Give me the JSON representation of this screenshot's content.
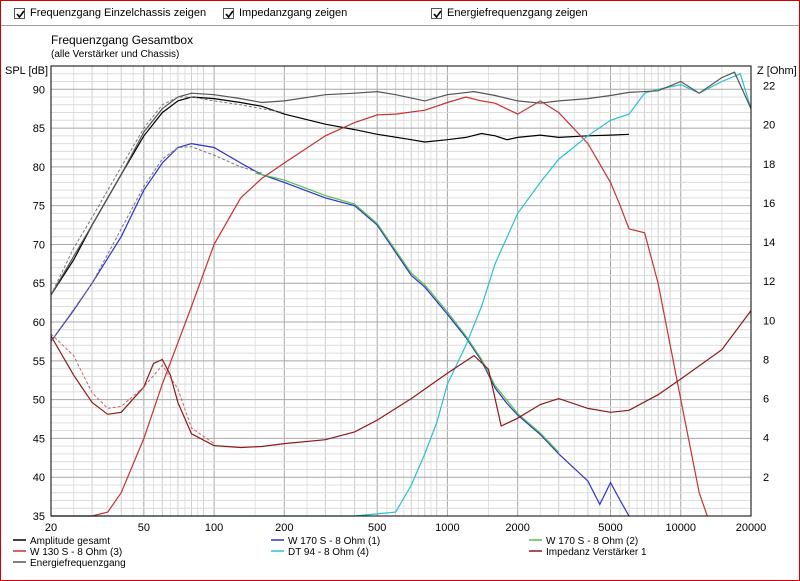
{
  "options": [
    {
      "label": "Frequenzgang Einzelchassis zeigen",
      "checked": true
    },
    {
      "label": "Impedanzgang zeigen",
      "checked": true
    },
    {
      "label": "Energiefrequenzgang zeigen",
      "checked": true
    }
  ],
  "chart_data": {
    "type": "line",
    "title": "Frequenzgang Gesamtbox",
    "subtitle": "(alle Verstärker und Chassis)",
    "ylabel": "SPL [dB]",
    "y2label": "Z [Ohm]",
    "xscale": "log",
    "xlim": [
      20,
      20000
    ],
    "ylim": [
      35,
      93
    ],
    "y2lim": [
      0,
      23
    ],
    "grid": true,
    "x_ticks": [
      "20",
      "50",
      "100",
      "200",
      "500",
      "1000",
      "2000",
      "5000",
      "10000",
      "20000"
    ],
    "x_tick_values": [
      20,
      50,
      100,
      200,
      500,
      1000,
      2000,
      5000,
      10000,
      20000
    ],
    "y_ticks": [
      "35",
      "40",
      "45",
      "50",
      "55",
      "60",
      "65",
      "70",
      "75",
      "80",
      "85",
      "90"
    ],
    "y_tick_values": [
      35,
      40,
      45,
      50,
      55,
      60,
      65,
      70,
      75,
      80,
      85,
      90
    ],
    "y2_ticks": [
      "2",
      "4",
      "6",
      "8",
      "10",
      "12",
      "14",
      "16",
      "18",
      "20",
      "22"
    ],
    "y2_tick_values": [
      2,
      4,
      6,
      8,
      10,
      12,
      14,
      16,
      18,
      20,
      22
    ],
    "series": [
      {
        "name": "Amplitude gesamt",
        "axis": "spl",
        "color": "#000000",
        "style": "solid",
        "x": [
          20,
          25,
          30,
          40,
          50,
          60,
          70,
          80,
          100,
          130,
          160,
          200,
          300,
          400,
          500,
          700,
          800,
          1000,
          1200,
          1400,
          1600,
          1800,
          2000,
          2500,
          3000,
          4000,
          5000,
          6000
        ],
        "y": [
          63.5,
          68,
          72.5,
          79,
          84,
          87,
          88.5,
          89,
          88.8,
          88.3,
          87.8,
          86.8,
          85.5,
          84.8,
          84.2,
          83.5,
          83.2,
          83.5,
          83.8,
          84.3,
          84,
          83.5,
          83.8,
          84.1,
          83.8,
          84,
          84.1,
          84.2
        ]
      },
      {
        "name": "W 170 S - 8 Ohm (1)",
        "axis": "spl",
        "color": "#3030c8",
        "style": "solid",
        "x": [
          20,
          25,
          30,
          40,
          50,
          60,
          70,
          80,
          100,
          130,
          160,
          200,
          300,
          400,
          500,
          700,
          800,
          1000,
          1200,
          1400,
          1600,
          1800,
          2000,
          2500,
          3000,
          4000,
          4500,
          5000,
          5500,
          6000
        ],
        "y": [
          57.5,
          61.5,
          65,
          71,
          77,
          80.5,
          82.5,
          83,
          82.5,
          80.5,
          79,
          78,
          76,
          75,
          72.5,
          66,
          64.5,
          61,
          58,
          55,
          51.5,
          49.5,
          48,
          45.5,
          43,
          39.5,
          36.5,
          39.3,
          37,
          35
        ]
      },
      {
        "name": "W 170 S - 8 Ohm (2)",
        "axis": "spl",
        "color": "#4cc44c",
        "style": "solid",
        "x": [
          150,
          200,
          300,
          400,
          500,
          700,
          800,
          1000,
          1200,
          1400,
          1600,
          2000,
          2500,
          3000
        ],
        "y": [
          79.2,
          78.3,
          76.3,
          75.2,
          72.7,
          66.3,
          64.8,
          61.3,
          58.2,
          55.2,
          51.8,
          48.2,
          45.7,
          43.2
        ]
      },
      {
        "name": "W 130 S - 8 Ohm (3)",
        "axis": "spl",
        "color": "#c83232",
        "style": "solid",
        "x": [
          20,
          30,
          35,
          40,
          50,
          60,
          80,
          100,
          130,
          160,
          200,
          300,
          400,
          500,
          600,
          800,
          1000,
          1200,
          1400,
          1600,
          2000,
          2500,
          3000,
          4000,
          5000,
          5500,
          6000,
          7000,
          8000,
          10000,
          12000,
          13000
        ],
        "y": [
          35,
          35,
          35.5,
          38,
          45,
          52,
          62,
          70,
          76,
          78.5,
          80.5,
          84,
          85.7,
          86.7,
          86.8,
          87.3,
          88.3,
          89,
          88.5,
          88.2,
          86.8,
          88.5,
          87,
          83,
          78,
          75,
          72,
          71.5,
          65,
          50,
          38,
          35
        ]
      },
      {
        "name": "DT 94 - 8 Ohm (4)",
        "axis": "spl",
        "color": "#2ac0d0",
        "style": "solid",
        "x": [
          20,
          400,
          600,
          700,
          800,
          900,
          1000,
          1200,
          1400,
          1600,
          2000,
          2500,
          3000,
          4000,
          5000,
          6000,
          7000,
          8000,
          10000,
          12000,
          15000,
          18000,
          20000
        ],
        "y": [
          35,
          35,
          35.5,
          39,
          43,
          47,
          52,
          57,
          62,
          67.5,
          74,
          78,
          81,
          84,
          86,
          86.8,
          89.5,
          90,
          90.6,
          89.5,
          91,
          92,
          87.5
        ]
      },
      {
        "name": "Impedanz Verstärker 1",
        "axis": "impedance",
        "color": "#8b1a1a",
        "style": "solid",
        "x": [
          20,
          25,
          30,
          35,
          40,
          50,
          55,
          60,
          65,
          70,
          80,
          100,
          130,
          160,
          200,
          300,
          400,
          500,
          700,
          1000,
          1300,
          1500,
          1700,
          2000,
          2500,
          3000,
          4000,
          5000,
          6000,
          8000,
          10000,
          15000,
          20000
        ],
        "y": [
          9.2,
          7.2,
          5.8,
          5.2,
          5.3,
          6.6,
          7.8,
          8.0,
          7.2,
          5.8,
          4.2,
          3.6,
          3.5,
          3.55,
          3.7,
          3.9,
          4.3,
          4.9,
          6.0,
          7.3,
          8.2,
          7.5,
          4.6,
          5.0,
          5.7,
          6.0,
          5.5,
          5.3,
          5.4,
          6.2,
          7.0,
          8.5,
          10.5
        ]
      },
      {
        "name": "Energiefrequenzgang",
        "axis": "spl",
        "color": "#555555",
        "style": "solid",
        "x": [
          20,
          30,
          40,
          50,
          60,
          70,
          80,
          100,
          130,
          160,
          200,
          300,
          400,
          500,
          600,
          800,
          1000,
          1300,
          1600,
          2000,
          2500,
          3000,
          4000,
          5000,
          6000,
          8000,
          10000,
          12000,
          15000,
          17000,
          20000
        ],
        "y": [
          63.5,
          72.5,
          79,
          84.5,
          87.5,
          89,
          89.5,
          89.3,
          88.8,
          88.3,
          88.5,
          89.3,
          89.5,
          89.7,
          89.3,
          88.5,
          89.3,
          89.7,
          89.2,
          88.5,
          88.2,
          88.5,
          88.8,
          89.2,
          89.6,
          89.8,
          91,
          89.5,
          91.5,
          92.2,
          87.5
        ]
      },
      {
        "name": "",
        "axis": "spl",
        "color": "#777777",
        "style": "dashed",
        "x": [
          20,
          25,
          30,
          40,
          50,
          60,
          70,
          80,
          100,
          130,
          160,
          200
        ],
        "y": [
          63.5,
          69.5,
          73.5,
          80,
          85,
          88,
          89,
          89,
          88.5,
          88,
          87.5,
          87
        ]
      },
      {
        "name": "",
        "axis": "spl",
        "color": "#777777",
        "style": "dashed",
        "x": [
          20,
          30,
          40,
          50,
          60,
          70,
          80,
          100,
          130,
          160
        ],
        "y": [
          57.5,
          65,
          72,
          77.5,
          81,
          82.5,
          82.6,
          81.5,
          80,
          79.2
        ]
      },
      {
        "name": "",
        "axis": "impedance",
        "color": "#c86464",
        "style": "dashed",
        "x": [
          20,
          25,
          30,
          35,
          40,
          50,
          60,
          70,
          80,
          100
        ],
        "y": [
          9.3,
          8.2,
          6.3,
          5.5,
          5.6,
          6.6,
          7.7,
          6.5,
          4.5,
          3.7
        ]
      }
    ]
  },
  "legend": [
    {
      "label": "Amplitude gesamt",
      "color": "#000000"
    },
    {
      "label": "W 170 S - 8 Ohm (1)",
      "color": "#3030c8"
    },
    {
      "label": "W 170 S - 8 Ohm (2)",
      "color": "#4cc44c"
    },
    {
      "label": "W 130 S - 8 Ohm (3)",
      "color": "#c83232"
    },
    {
      "label": "DT 94 - 8 Ohm (4)",
      "color": "#2ac0d0"
    },
    {
      "label": "Impedanz Verstärker 1",
      "color": "#8b1a1a"
    },
    {
      "label": "Energiefrequenzgang",
      "color": "#555555"
    }
  ]
}
